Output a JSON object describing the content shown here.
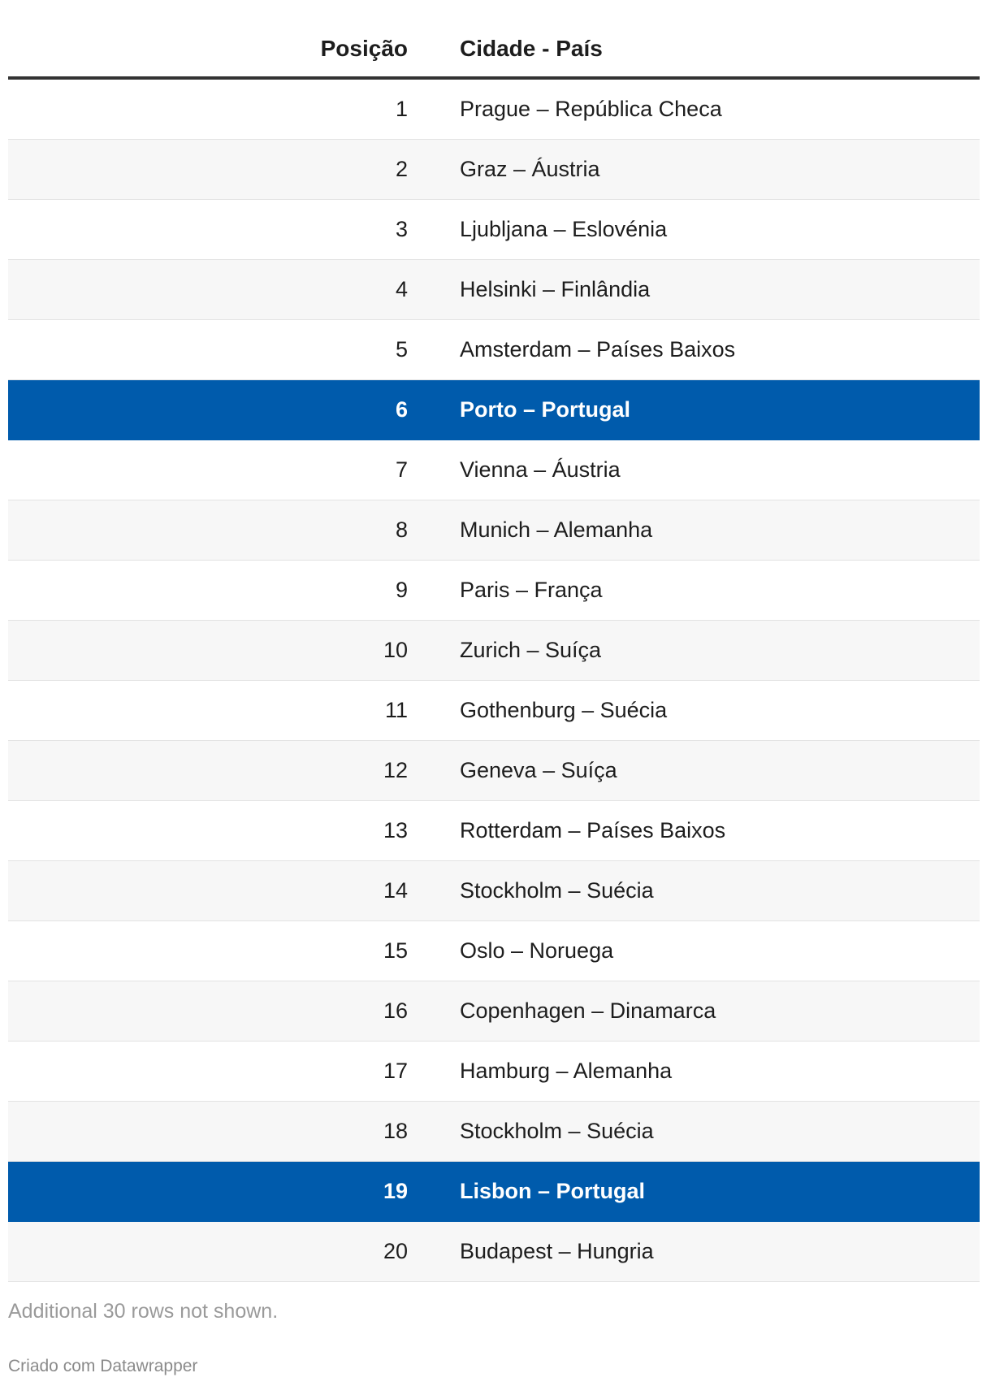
{
  "colors": {
    "highlight": "#005bac",
    "alt_row": "#f7f7f7",
    "header_rule": "#333333"
  },
  "table": {
    "headers": [
      "Posição",
      "Cidade - País"
    ],
    "rows": [
      {
        "pos": "1",
        "city": "Prague – República Checa"
      },
      {
        "pos": "2",
        "city": "Graz – Áustria"
      },
      {
        "pos": "3",
        "city": "Ljubljana – Eslovénia"
      },
      {
        "pos": "4",
        "city": "Helsinki – Finlândia"
      },
      {
        "pos": "5",
        "city": "Amsterdam – Países Baixos"
      },
      {
        "pos": "6",
        "city": "Porto – Portugal",
        "highlight": true
      },
      {
        "pos": "7",
        "city": "Vienna – Áustria"
      },
      {
        "pos": "8",
        "city": "Munich – Alemanha"
      },
      {
        "pos": "9",
        "city": "Paris – França"
      },
      {
        "pos": "10",
        "city": "Zurich – Suíça"
      },
      {
        "pos": "11",
        "city": "Gothenburg – Suécia"
      },
      {
        "pos": "12",
        "city": "Geneva – Suíça"
      },
      {
        "pos": "13",
        "city": "Rotterdam – Países Baixos"
      },
      {
        "pos": "14",
        "city": "Stockholm – Suécia"
      },
      {
        "pos": "15",
        "city": "Oslo – Noruega"
      },
      {
        "pos": "16",
        "city": "Copenhagen – Dinamarca"
      },
      {
        "pos": "17",
        "city": "Hamburg – Alemanha"
      },
      {
        "pos": "18",
        "city": "Stockholm – Suécia"
      },
      {
        "pos": "19",
        "city": "Lisbon – Portugal",
        "highlight": true
      },
      {
        "pos": "20",
        "city": "Budapest – Hungria"
      }
    ]
  },
  "footer": {
    "note": "Additional 30 rows not shown.",
    "credit": "Criado com Datawrapper"
  }
}
